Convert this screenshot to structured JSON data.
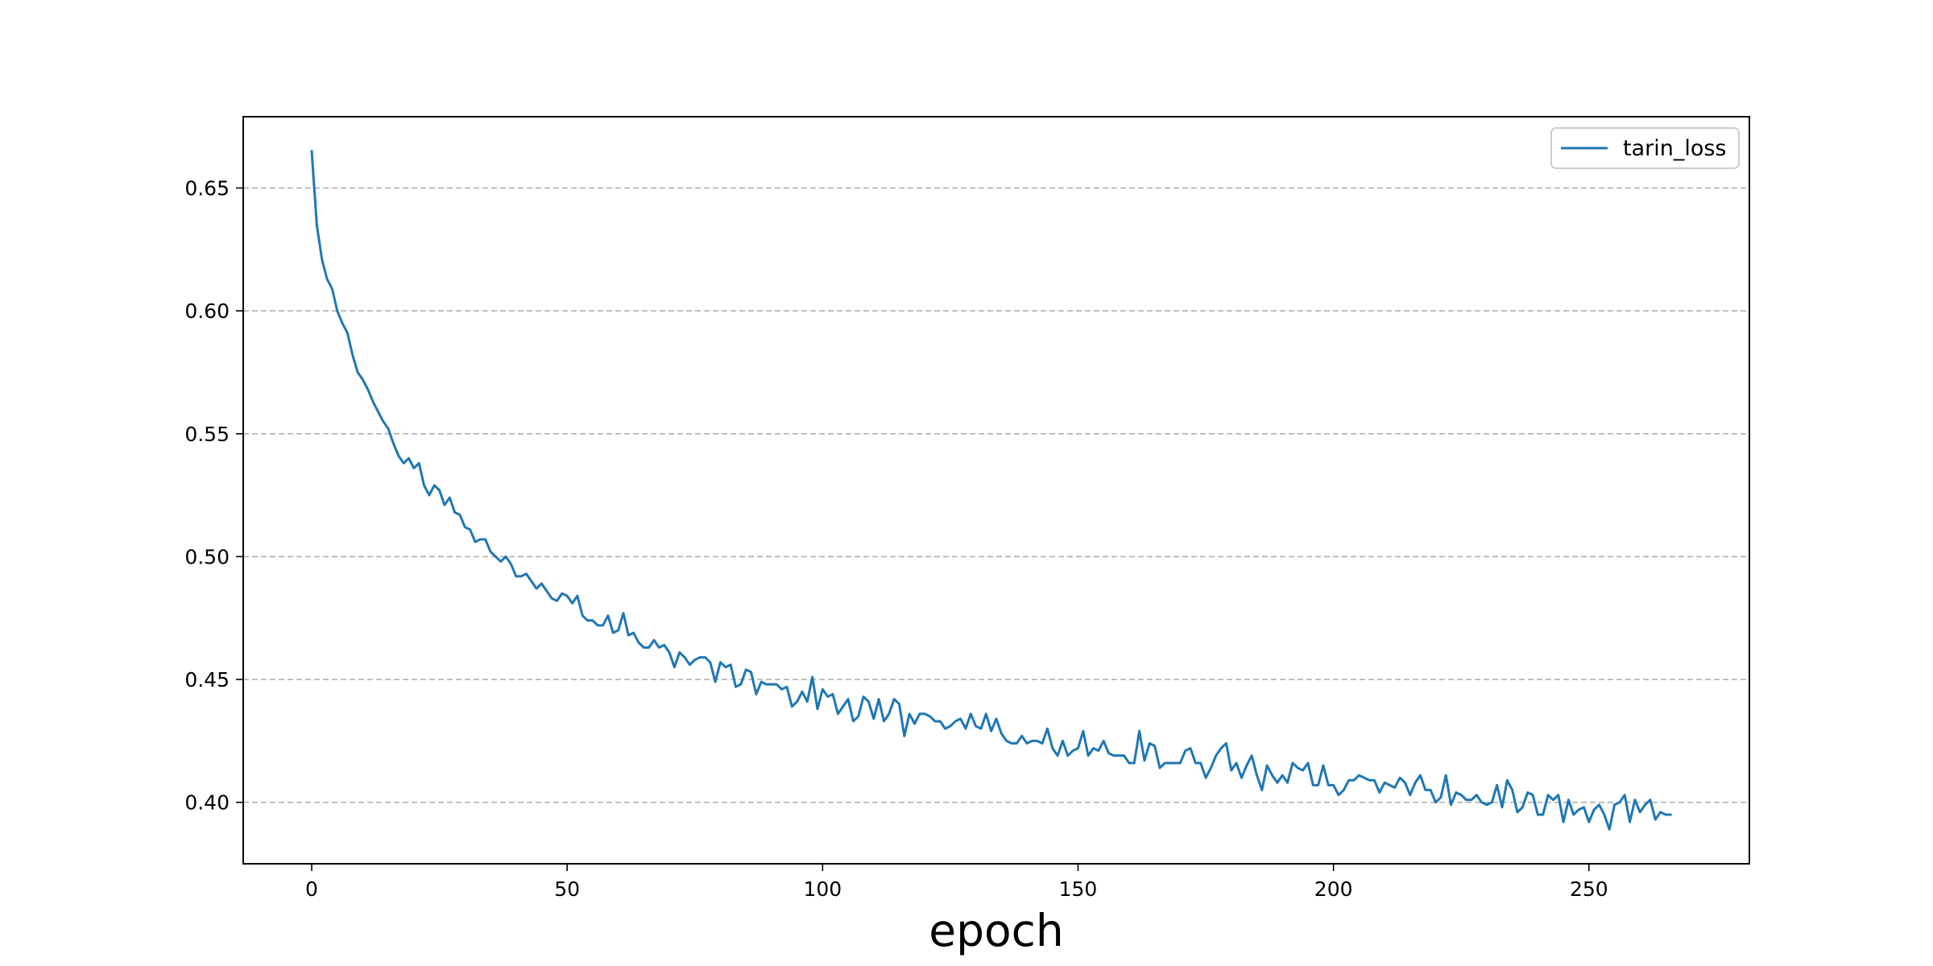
{
  "chart_data": {
    "type": "line",
    "title": "",
    "xlabel": "epoch",
    "ylabel": "",
    "xlim": [
      -13.4,
      281.4
    ],
    "ylim": [
      0.375,
      0.679
    ],
    "xticks": [
      0,
      50,
      100,
      150,
      200,
      250
    ],
    "yticks": [
      0.4,
      0.45,
      0.5,
      0.55,
      0.6,
      0.65
    ],
    "xtick_labels": [
      "0",
      "50",
      "100",
      "150",
      "200",
      "250"
    ],
    "ytick_labels": [
      "0.40",
      "0.45",
      "0.50",
      "0.55",
      "0.60",
      "0.65"
    ],
    "grid": {
      "axis": "y",
      "style": "dashed",
      "color": "#b0b0b0"
    },
    "legend": {
      "position": "top-right"
    },
    "series": [
      {
        "name": "tarin_loss",
        "color": "#1f77b4",
        "x_start": 0,
        "x_step": 1,
        "values": [
          0.665,
          0.635,
          0.621,
          0.613,
          0.609,
          0.6,
          0.595,
          0.591,
          0.582,
          0.575,
          0.572,
          0.568,
          0.563,
          0.559,
          0.555,
          0.552,
          0.546,
          0.541,
          0.538,
          0.54,
          0.536,
          0.538,
          0.529,
          0.525,
          0.529,
          0.527,
          0.521,
          0.524,
          0.518,
          0.517,
          0.512,
          0.511,
          0.506,
          0.507,
          0.507,
          0.502,
          0.5,
          0.498,
          0.5,
          0.497,
          0.492,
          0.492,
          0.493,
          0.49,
          0.487,
          0.489,
          0.486,
          0.483,
          0.482,
          0.485,
          0.484,
          0.481,
          0.484,
          0.476,
          0.474,
          0.474,
          0.472,
          0.472,
          0.476,
          0.469,
          0.47,
          0.477,
          0.468,
          0.469,
          0.465,
          0.463,
          0.463,
          0.466,
          0.463,
          0.464,
          0.461,
          0.455,
          0.461,
          0.459,
          0.456,
          0.458,
          0.459,
          0.459,
          0.457,
          0.449,
          0.457,
          0.455,
          0.456,
          0.447,
          0.448,
          0.454,
          0.453,
          0.444,
          0.449,
          0.448,
          0.448,
          0.448,
          0.446,
          0.447,
          0.439,
          0.441,
          0.445,
          0.441,
          0.451,
          0.438,
          0.446,
          0.443,
          0.444,
          0.436,
          0.439,
          0.442,
          0.433,
          0.435,
          0.443,
          0.441,
          0.434,
          0.442,
          0.433,
          0.436,
          0.442,
          0.44,
          0.427,
          0.436,
          0.432,
          0.436,
          0.436,
          0.435,
          0.433,
          0.433,
          0.43,
          0.431,
          0.433,
          0.434,
          0.43,
          0.436,
          0.431,
          0.43,
          0.436,
          0.429,
          0.434,
          0.428,
          0.425,
          0.424,
          0.424,
          0.427,
          0.424,
          0.425,
          0.425,
          0.424,
          0.43,
          0.422,
          0.419,
          0.425,
          0.419,
          0.421,
          0.422,
          0.429,
          0.419,
          0.422,
          0.421,
          0.425,
          0.42,
          0.419,
          0.419,
          0.419,
          0.416,
          0.416,
          0.429,
          0.417,
          0.424,
          0.423,
          0.414,
          0.416,
          0.416,
          0.416,
          0.416,
          0.421,
          0.422,
          0.416,
          0.416,
          0.41,
          0.414,
          0.419,
          0.422,
          0.424,
          0.413,
          0.416,
          0.41,
          0.415,
          0.419,
          0.411,
          0.405,
          0.415,
          0.411,
          0.408,
          0.411,
          0.408,
          0.416,
          0.414,
          0.413,
          0.416,
          0.407,
          0.407,
          0.415,
          0.407,
          0.407,
          0.403,
          0.405,
          0.409,
          0.409,
          0.411,
          0.41,
          0.409,
          0.409,
          0.404,
          0.408,
          0.407,
          0.406,
          0.41,
          0.408,
          0.403,
          0.408,
          0.411,
          0.405,
          0.405,
          0.4,
          0.402,
          0.411,
          0.399,
          0.404,
          0.403,
          0.401,
          0.401,
          0.403,
          0.4,
          0.399,
          0.4,
          0.407,
          0.398,
          0.409,
          0.405,
          0.396,
          0.398,
          0.404,
          0.403,
          0.395,
          0.395,
          0.403,
          0.401,
          0.403,
          0.392,
          0.401,
          0.395,
          0.397,
          0.398,
          0.392,
          0.397,
          0.399,
          0.395,
          0.389,
          0.399,
          0.4,
          0.403,
          0.392,
          0.401,
          0.396,
          0.399,
          0.401,
          0.393,
          0.396,
          0.395,
          0.395
        ]
      }
    ]
  }
}
